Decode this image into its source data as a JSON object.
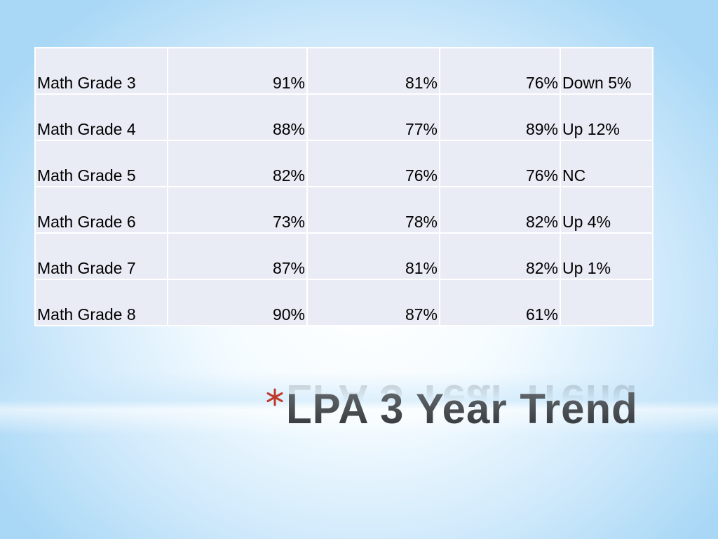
{
  "table": {
    "rows": [
      [
        "Math Grade 3",
        "91%",
        "81%",
        "76%",
        "Down 5%"
      ],
      [
        "Math Grade 4",
        "88%",
        "77%",
        "89%",
        "Up 12%"
      ],
      [
        "Math Grade 5",
        "82%",
        "76%",
        "76%",
        "NC"
      ],
      [
        "Math Grade 6",
        "73%",
        "78%",
        "82%",
        "Up 4%"
      ],
      [
        "Math Grade 7",
        "87%",
        "81%",
        "82%",
        "Up 1%"
      ],
      [
        "Math Grade 8",
        "90%",
        "87%",
        "61%"
      ]
    ]
  },
  "title": "LPA 3 Year Trend"
}
